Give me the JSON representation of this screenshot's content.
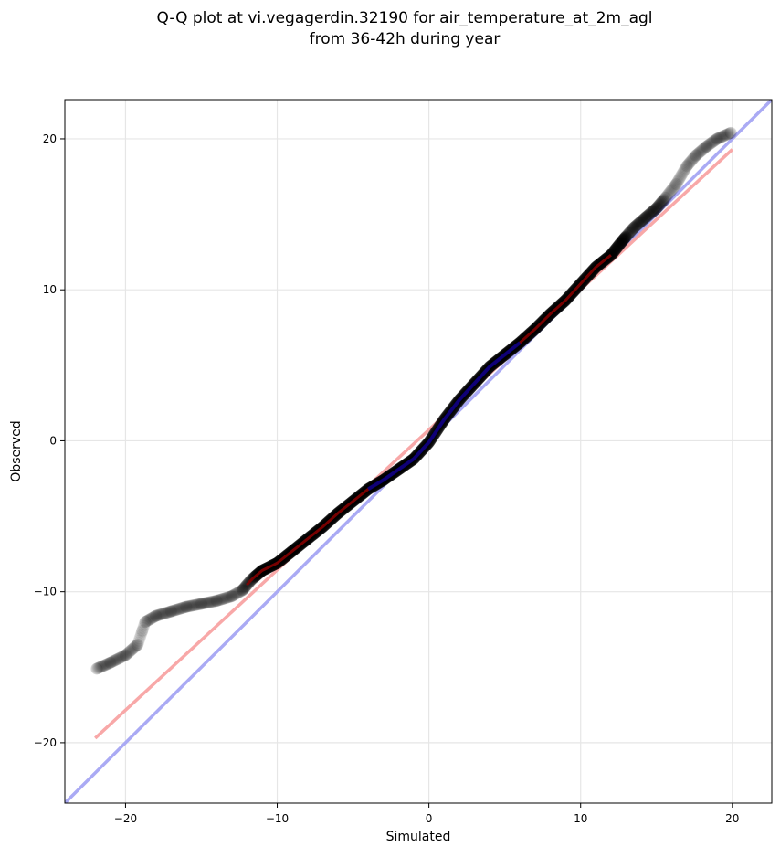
{
  "chart_data": {
    "type": "scatter",
    "title_lines": [
      "Q-Q plot at vi.vegagerdin.32190 for air_temperature_at_2m_agl",
      "from 36-42h during year"
    ],
    "xlabel": "Simulated",
    "ylabel": "Observed",
    "xlim": [
      -24.0,
      22.6
    ],
    "ylim": [
      -24.0,
      22.6
    ],
    "xticks": [
      -20,
      -10,
      0,
      10,
      20
    ],
    "yticks": [
      -20,
      -10,
      0,
      10,
      20
    ],
    "xtick_labels": [
      "−20",
      "−10",
      "0",
      "10",
      "20"
    ],
    "ytick_labels": [
      "−20",
      "−10",
      "0",
      "10",
      "20"
    ],
    "grid": true,
    "colors": {
      "points": "#000000",
      "identity_line": "#aaaaf4",
      "fit_line": "#f8a8a8",
      "median_band": "#8b0000",
      "central_band": "#00008b"
    },
    "quantile_curve": [
      [
        -21.9,
        -15.1
      ],
      [
        -21.0,
        -14.7
      ],
      [
        -20.0,
        -14.2
      ],
      [
        -19.2,
        -13.5
      ],
      [
        -18.9,
        -12.6
      ],
      [
        -18.7,
        -12.0
      ],
      [
        -18.0,
        -11.6
      ],
      [
        -17.0,
        -11.3
      ],
      [
        -16.0,
        -11.0
      ],
      [
        -15.0,
        -10.8
      ],
      [
        -14.0,
        -10.6
      ],
      [
        -13.0,
        -10.3
      ],
      [
        -12.3,
        -9.9
      ],
      [
        -11.7,
        -9.2
      ],
      [
        -11.0,
        -8.6
      ],
      [
        -10.0,
        -8.1
      ],
      [
        -9.0,
        -7.3
      ],
      [
        -8.0,
        -6.5
      ],
      [
        -7.0,
        -5.7
      ],
      [
        -6.0,
        -4.8
      ],
      [
        -5.0,
        -4.0
      ],
      [
        -4.0,
        -3.2
      ],
      [
        -3.0,
        -2.6
      ],
      [
        -2.0,
        -1.9
      ],
      [
        -1.0,
        -1.2
      ],
      [
        0.0,
        -0.1
      ],
      [
        1.0,
        1.4
      ],
      [
        2.0,
        2.7
      ],
      [
        3.0,
        3.8
      ],
      [
        4.0,
        4.9
      ],
      [
        5.0,
        5.7
      ],
      [
        6.0,
        6.5
      ],
      [
        7.0,
        7.4
      ],
      [
        8.0,
        8.4
      ],
      [
        9.0,
        9.3
      ],
      [
        10.0,
        10.4
      ],
      [
        11.0,
        11.5
      ],
      [
        12.0,
        12.3
      ],
      [
        12.8,
        13.3
      ],
      [
        13.5,
        14.1
      ],
      [
        14.3,
        14.8
      ],
      [
        15.0,
        15.4
      ],
      [
        15.6,
        16.1
      ],
      [
        16.3,
        17.0
      ],
      [
        17.0,
        18.2
      ],
      [
        17.6,
        18.9
      ],
      [
        18.3,
        19.5
      ],
      [
        19.0,
        20.0
      ],
      [
        19.9,
        20.4
      ]
    ],
    "fit_line": {
      "x": [
        -22.0,
        20.0
      ],
      "y": [
        -19.7,
        19.3
      ]
    },
    "identity_line": {
      "x": [
        -24.0,
        22.6
      ],
      "y": [
        -24.0,
        22.6
      ]
    },
    "median_band": {
      "x": [
        -12.0,
        12.0
      ]
    },
    "central_band": {
      "x": [
        -4.0,
        6.0
      ]
    }
  }
}
